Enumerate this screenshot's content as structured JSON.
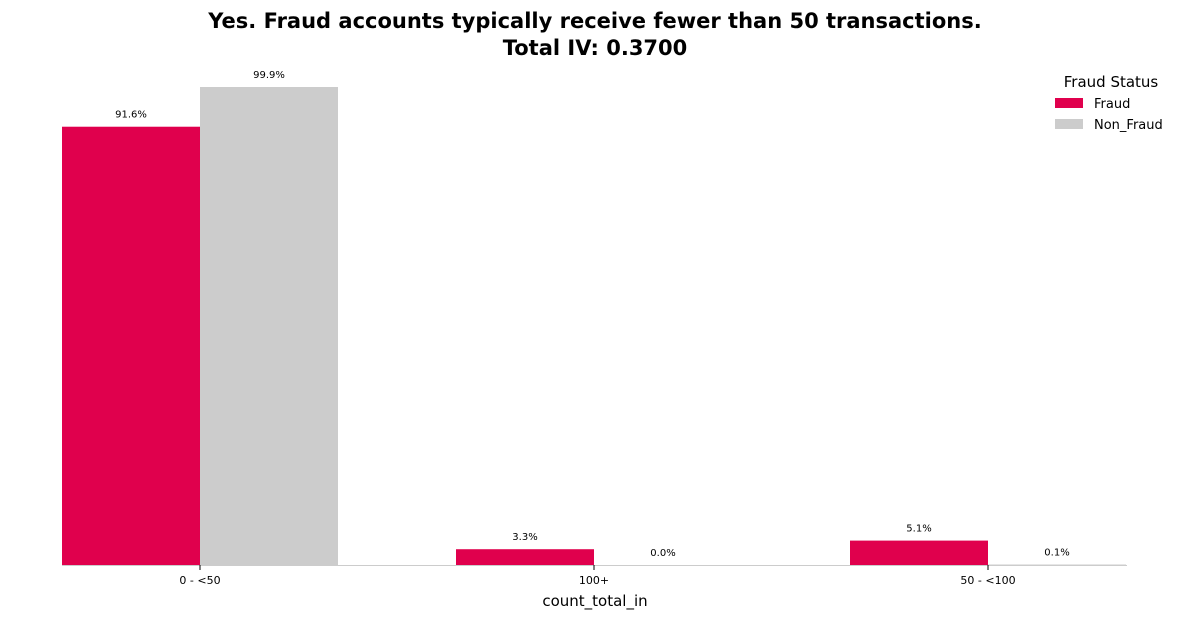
{
  "chart_data": {
    "type": "bar",
    "title_line1": "Yes. Fraud accounts typically receive fewer than 50 transactions.",
    "title_line2": "Total IV: 0.3700",
    "xlabel": "count_total_in",
    "ylabel": "",
    "categories": [
      "0 - <50",
      "100+",
      "50 - <100"
    ],
    "series": [
      {
        "name": "Fraud",
        "color": "#e0004d",
        "values": [
          91.6,
          3.3,
          5.1
        ],
        "labels": [
          "91.6%",
          "3.3%",
          "5.1%"
        ]
      },
      {
        "name": "Non_Fraud",
        "color": "#cccccc",
        "values": [
          99.9,
          0.0,
          0.1
        ],
        "labels": [
          "99.9%",
          "0.0%",
          "0.1%"
        ]
      }
    ],
    "ylim": [
      0,
      100
    ],
    "grid": false,
    "legend": {
      "title": "Fraud Status",
      "position": "top-right"
    }
  }
}
